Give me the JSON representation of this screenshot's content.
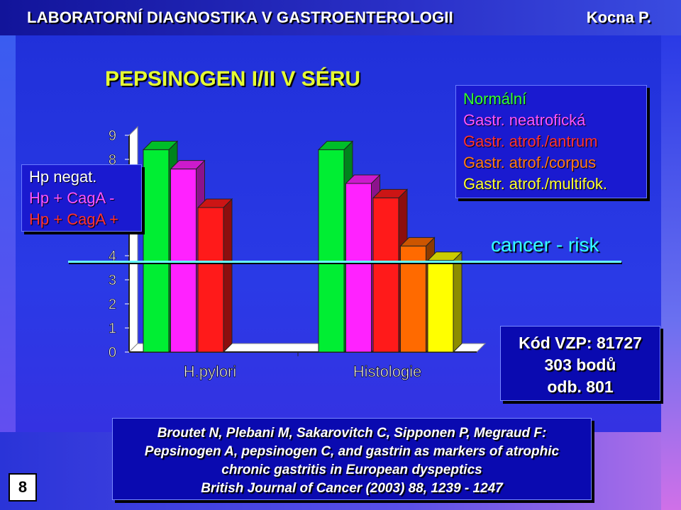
{
  "header": {
    "title": "LABORATORNÍ DIAGNOSTIKA V GASTROENTEROLOGII",
    "author": "Kocna P."
  },
  "slide_number": "8",
  "chart_data": {
    "type": "bar",
    "title": "PEPSINOGEN I/II V SÉRU",
    "categories": [
      "H.pylori",
      "Histologie"
    ],
    "y_ticks": [
      "0",
      "1",
      "2",
      "3",
      "4",
      "8",
      "9"
    ],
    "ylim": [
      0,
      9
    ],
    "groups": [
      {
        "category": "H.pylori",
        "bars": [
          {
            "label": "Hp negat.",
            "value": 8.4,
            "color": "#00ee33"
          },
          {
            "label": "Hp + CagA -",
            "value": 7.6,
            "color": "#ff22ff"
          },
          {
            "label": "Hp + CagA +",
            "value": 6.0,
            "color": "#ff1a1a"
          }
        ]
      },
      {
        "category": "Histologie",
        "bars": [
          {
            "label": "Normální",
            "value": 8.4,
            "color": "#00ee33"
          },
          {
            "label": "Gastr. neatrofická",
            "value": 7.0,
            "color": "#ff22ff"
          },
          {
            "label": "Gastr. atrof./antrum",
            "value": 6.4,
            "color": "#ff1a1a"
          },
          {
            "label": "Gastr. atrof./corpus",
            "value": 4.4,
            "color": "#ff6a00"
          },
          {
            "label": "Gastr. atrof./multifok.",
            "value": 3.8,
            "color": "#ffff00"
          }
        ]
      }
    ],
    "legend_left": [
      {
        "text": "Hp negat.",
        "color": "#ffffff"
      },
      {
        "text": "Hp +  CagA -",
        "color": "#ff55ff"
      },
      {
        "text": "Hp +  CagA +",
        "color": "#ff3333"
      }
    ],
    "legend_right": [
      {
        "text": "Normální",
        "color": "#33ff33"
      },
      {
        "text": "Gastr. neatrofická",
        "color": "#ff55ff"
      },
      {
        "text": "Gastr. atrof./antrum",
        "color": "#ff3333"
      },
      {
        "text": "Gastr. atrof./corpus",
        "color": "#ff7a1a"
      },
      {
        "text": "Gastr. atrof./multifok.",
        "color": "#ffff33"
      }
    ],
    "annotation": "cancer - risk"
  },
  "code_box": {
    "line1": "Kód VZP: 81727",
    "line2": "303 bodů",
    "line3": "odb. 801"
  },
  "reference": {
    "line1": "Broutet N, Plebani M, Sakarovitch C, Sipponen P, Megraud F:",
    "line2": "Pepsinogen A, pepsinogen C, and gastrin as markers of atrophic",
    "line3": "chronic gastritis in European dyspeptics",
    "line4": "British Journal of Cancer (2003) 88, 1239 - 1247"
  }
}
